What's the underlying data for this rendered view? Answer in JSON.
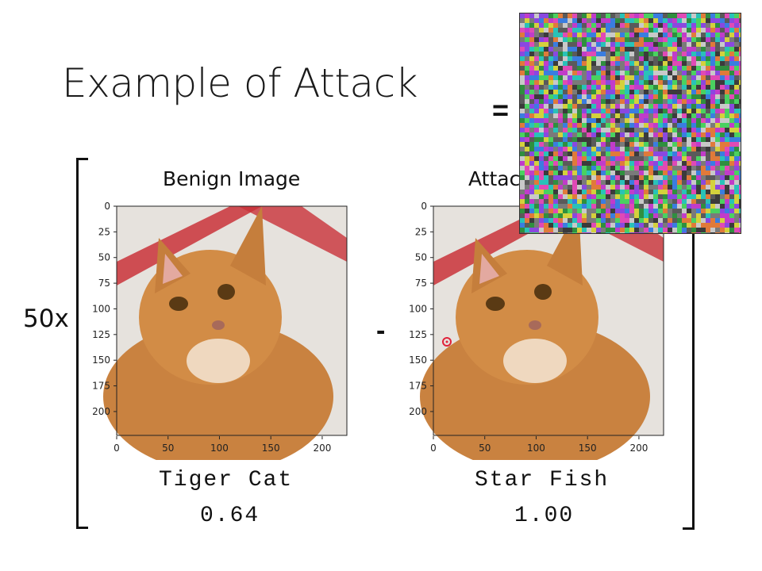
{
  "slide": {
    "title": "Example of Attack",
    "equals": "=",
    "multiplier": "50x",
    "minus": "-"
  },
  "benign": {
    "title": "Benign Image",
    "label": "Tiger Cat",
    "confidence": "0.64",
    "ticks": [
      "0",
      "25",
      "50",
      "75",
      "100",
      "125",
      "150",
      "175",
      "200"
    ],
    "xticks": [
      "0",
      "50",
      "100",
      "150",
      "200"
    ]
  },
  "attacked": {
    "title": "Attacked Image",
    "label": "Star Fish",
    "confidence": "1.00",
    "ticks": [
      "0",
      "25",
      "50",
      "75",
      "100",
      "125",
      "150",
      "175",
      "200"
    ],
    "xticks": [
      "0",
      "50",
      "100",
      "150",
      "200"
    ]
  },
  "colors": {
    "cat_fur": "#d08a3e",
    "background": "#e8e4df",
    "stripe": "#c9323a"
  }
}
